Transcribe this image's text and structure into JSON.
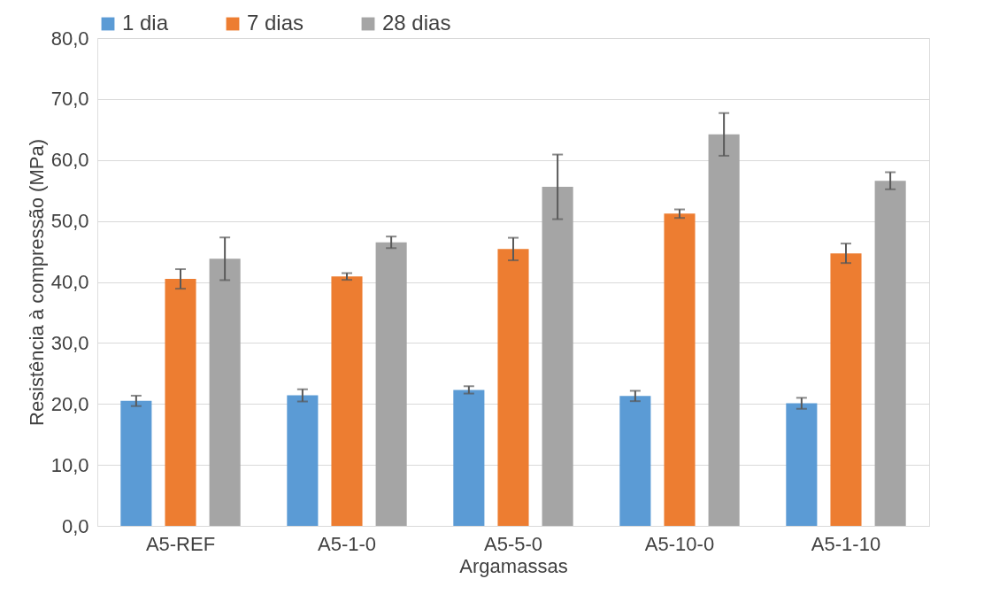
{
  "chart_data": {
    "type": "bar",
    "xlabel": "Argamassas",
    "ylabel": "Resistência à compressão (MPa)",
    "categories": [
      "A5-REF",
      "A5-1-0",
      "A5-5-0",
      "A5-10-0",
      "A5-1-10"
    ],
    "series": [
      {
        "name": "1 dia",
        "color": "#5b9bd5",
        "values": [
          20.5,
          21.4,
          22.3,
          21.3,
          20.1
        ],
        "errors": [
          0.85,
          1.0,
          0.6,
          0.85,
          0.9
        ]
      },
      {
        "name": "7 dias",
        "color": "#ed7d31",
        "values": [
          40.5,
          40.9,
          45.4,
          51.2,
          44.7
        ],
        "errors": [
          1.6,
          0.55,
          1.85,
          0.7,
          1.6
        ]
      },
      {
        "name": "28 dias",
        "color": "#a5a5a5",
        "values": [
          43.8,
          46.5,
          55.6,
          64.2,
          56.6
        ],
        "errors": [
          3.5,
          0.95,
          5.3,
          3.5,
          1.4
        ]
      }
    ],
    "ylim": [
      0,
      80
    ],
    "yticks": [
      {
        "value": 0,
        "label": "0,0"
      },
      {
        "value": 10,
        "label": "10,0"
      },
      {
        "value": 20,
        "label": "20,0"
      },
      {
        "value": 30,
        "label": "30,0"
      },
      {
        "value": 40,
        "label": "40,0"
      },
      {
        "value": 50,
        "label": "50,0"
      },
      {
        "value": 60,
        "label": "60,0"
      },
      {
        "value": 70,
        "label": "70,0"
      },
      {
        "value": 80,
        "label": "80,0"
      }
    ],
    "grid": "y",
    "legend": "top"
  }
}
